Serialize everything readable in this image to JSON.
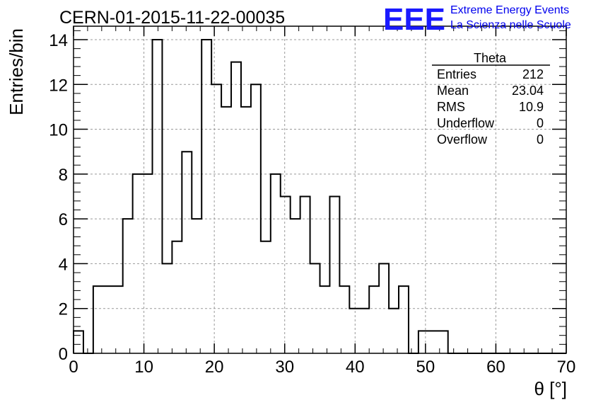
{
  "chart_data": {
    "type": "histogram",
    "title": "CERN-01-2015-11-22-00035",
    "xlabel": "θ [°]",
    "ylabel": "Entries/bin",
    "xlim": [
      0,
      70
    ],
    "ylim": [
      0,
      14.6
    ],
    "grid": true,
    "bin_width": 1.4,
    "bin_edges_start": 0,
    "counts": [
      1,
      0,
      3,
      3,
      3,
      6,
      8,
      8,
      14,
      4,
      5,
      9,
      6,
      14,
      12,
      11,
      13,
      11,
      12,
      5,
      8,
      7,
      6,
      7,
      4,
      3,
      7,
      3,
      2,
      2,
      3,
      4,
      2,
      3,
      0,
      1,
      1,
      1,
      0,
      0,
      0,
      0,
      0,
      0,
      0,
      0,
      0,
      0,
      0,
      0
    ],
    "x_ticks": [
      "0",
      "10",
      "20",
      "30",
      "40",
      "50",
      "60",
      "70"
    ],
    "y_ticks": [
      "0",
      "2",
      "4",
      "6",
      "8",
      "10",
      "12",
      "14"
    ],
    "stats_box": {
      "name": "Theta",
      "rows": [
        {
          "label": "Entries",
          "value": "212"
        },
        {
          "label": "Mean",
          "value": "23.04"
        },
        {
          "label": "RMS",
          "value": "10.9"
        },
        {
          "label": "Underflow",
          "value": "0"
        },
        {
          "label": "Overflow",
          "value": "0"
        }
      ]
    }
  },
  "logo": {
    "mark": "EEE",
    "line1": "Extreme Energy Events",
    "line2": "La Scienza nelle Scuole"
  }
}
